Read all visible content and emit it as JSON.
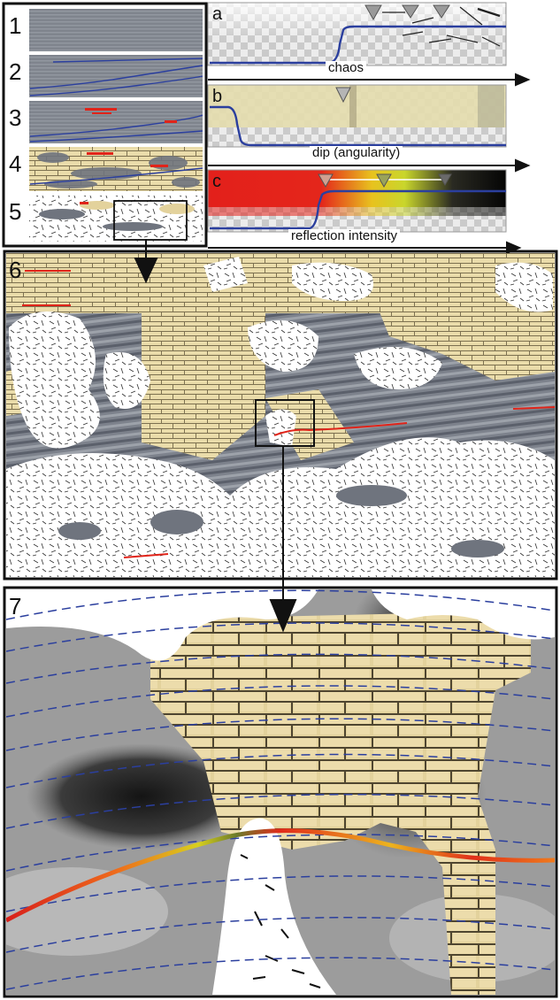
{
  "panels": {
    "p1": "1",
    "p2": "2",
    "p3": "3",
    "p4": "4",
    "p5": "5",
    "p6": "6",
    "p7": "7"
  },
  "attributes": {
    "a": {
      "letter": "a",
      "label": "chaos"
    },
    "b": {
      "letter": "b",
      "label": "dip (angularity)"
    },
    "c": {
      "letter": "c",
      "label": "reflection intensity"
    }
  },
  "colors": {
    "horizon_blue": "#2b3f9e",
    "highlight_red": "#e0241a",
    "intensity_yellow": "#e6e31e",
    "sand": "#eadcaa",
    "seismic_grey": "#7a7f89",
    "frame": "#111111"
  },
  "icons": {
    "marker": "triangle-marker-icon",
    "flow_arrow": "arrow-down-icon",
    "axis_arrow": "arrow-right-icon"
  }
}
